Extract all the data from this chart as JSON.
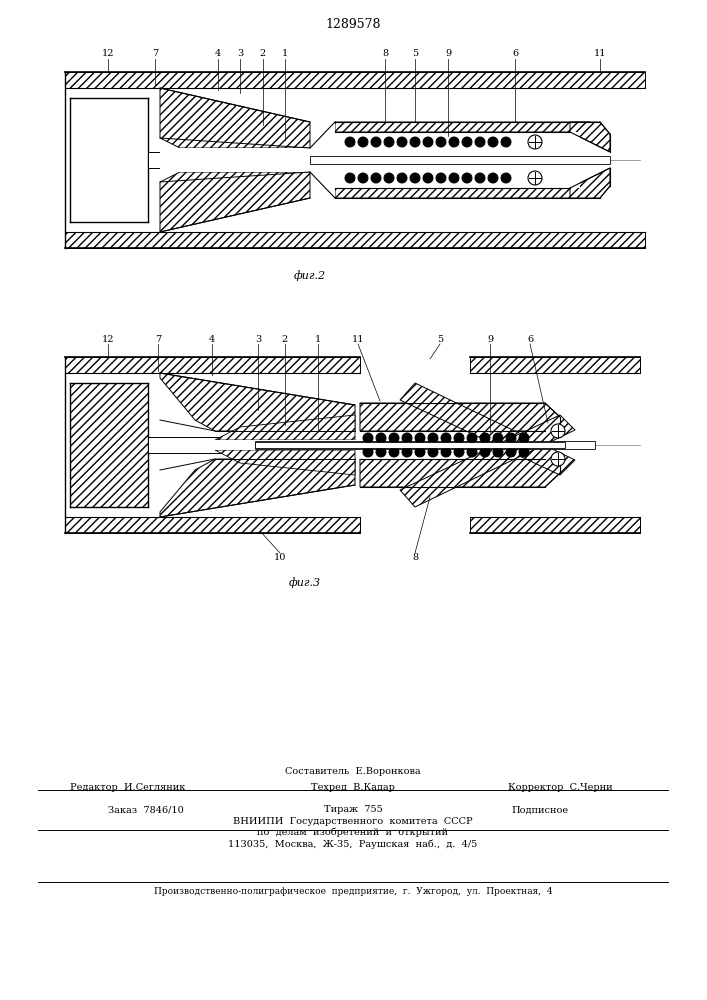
{
  "patent_number": "1289578",
  "fig2_label": "фиг.2",
  "fig3_label": "фиг.3",
  "bg_color": "#ffffff"
}
